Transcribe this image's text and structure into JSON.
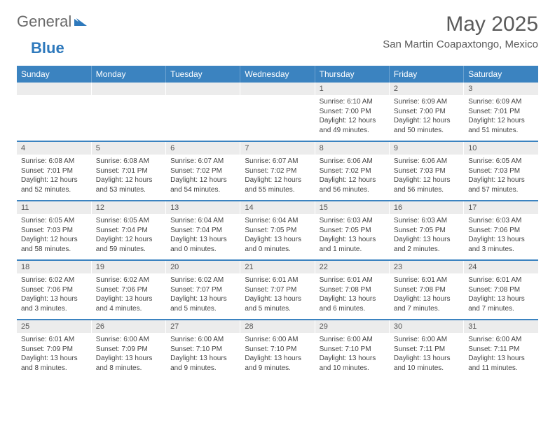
{
  "brand": {
    "word1": "General",
    "word2": "Blue",
    "accent_color": "#2e79bc",
    "text_color": "#6a6a6a"
  },
  "title": "May 2025",
  "location": "San Martin Coapaxtongo, Mexico",
  "header_bg": "#3b83c0",
  "daynum_bg": "#ececec",
  "divider_color": "#3b83c0",
  "weekdays": [
    "Sunday",
    "Monday",
    "Tuesday",
    "Wednesday",
    "Thursday",
    "Friday",
    "Saturday"
  ],
  "weeks": [
    [
      null,
      null,
      null,
      null,
      {
        "n": "1",
        "sr": "6:10 AM",
        "ss": "7:00 PM",
        "dl": "12 hours and 49 minutes."
      },
      {
        "n": "2",
        "sr": "6:09 AM",
        "ss": "7:00 PM",
        "dl": "12 hours and 50 minutes."
      },
      {
        "n": "3",
        "sr": "6:09 AM",
        "ss": "7:01 PM",
        "dl": "12 hours and 51 minutes."
      }
    ],
    [
      {
        "n": "4",
        "sr": "6:08 AM",
        "ss": "7:01 PM",
        "dl": "12 hours and 52 minutes."
      },
      {
        "n": "5",
        "sr": "6:08 AM",
        "ss": "7:01 PM",
        "dl": "12 hours and 53 minutes."
      },
      {
        "n": "6",
        "sr": "6:07 AM",
        "ss": "7:02 PM",
        "dl": "12 hours and 54 minutes."
      },
      {
        "n": "7",
        "sr": "6:07 AM",
        "ss": "7:02 PM",
        "dl": "12 hours and 55 minutes."
      },
      {
        "n": "8",
        "sr": "6:06 AM",
        "ss": "7:02 PM",
        "dl": "12 hours and 56 minutes."
      },
      {
        "n": "9",
        "sr": "6:06 AM",
        "ss": "7:03 PM",
        "dl": "12 hours and 56 minutes."
      },
      {
        "n": "10",
        "sr": "6:05 AM",
        "ss": "7:03 PM",
        "dl": "12 hours and 57 minutes."
      }
    ],
    [
      {
        "n": "11",
        "sr": "6:05 AM",
        "ss": "7:03 PM",
        "dl": "12 hours and 58 minutes."
      },
      {
        "n": "12",
        "sr": "6:05 AM",
        "ss": "7:04 PM",
        "dl": "12 hours and 59 minutes."
      },
      {
        "n": "13",
        "sr": "6:04 AM",
        "ss": "7:04 PM",
        "dl": "13 hours and 0 minutes."
      },
      {
        "n": "14",
        "sr": "6:04 AM",
        "ss": "7:05 PM",
        "dl": "13 hours and 0 minutes."
      },
      {
        "n": "15",
        "sr": "6:03 AM",
        "ss": "7:05 PM",
        "dl": "13 hours and 1 minute."
      },
      {
        "n": "16",
        "sr": "6:03 AM",
        "ss": "7:05 PM",
        "dl": "13 hours and 2 minutes."
      },
      {
        "n": "17",
        "sr": "6:03 AM",
        "ss": "7:06 PM",
        "dl": "13 hours and 3 minutes."
      }
    ],
    [
      {
        "n": "18",
        "sr": "6:02 AM",
        "ss": "7:06 PM",
        "dl": "13 hours and 3 minutes."
      },
      {
        "n": "19",
        "sr": "6:02 AM",
        "ss": "7:06 PM",
        "dl": "13 hours and 4 minutes."
      },
      {
        "n": "20",
        "sr": "6:02 AM",
        "ss": "7:07 PM",
        "dl": "13 hours and 5 minutes."
      },
      {
        "n": "21",
        "sr": "6:01 AM",
        "ss": "7:07 PM",
        "dl": "13 hours and 5 minutes."
      },
      {
        "n": "22",
        "sr": "6:01 AM",
        "ss": "7:08 PM",
        "dl": "13 hours and 6 minutes."
      },
      {
        "n": "23",
        "sr": "6:01 AM",
        "ss": "7:08 PM",
        "dl": "13 hours and 7 minutes."
      },
      {
        "n": "24",
        "sr": "6:01 AM",
        "ss": "7:08 PM",
        "dl": "13 hours and 7 minutes."
      }
    ],
    [
      {
        "n": "25",
        "sr": "6:01 AM",
        "ss": "7:09 PM",
        "dl": "13 hours and 8 minutes."
      },
      {
        "n": "26",
        "sr": "6:00 AM",
        "ss": "7:09 PM",
        "dl": "13 hours and 8 minutes."
      },
      {
        "n": "27",
        "sr": "6:00 AM",
        "ss": "7:10 PM",
        "dl": "13 hours and 9 minutes."
      },
      {
        "n": "28",
        "sr": "6:00 AM",
        "ss": "7:10 PM",
        "dl": "13 hours and 9 minutes."
      },
      {
        "n": "29",
        "sr": "6:00 AM",
        "ss": "7:10 PM",
        "dl": "13 hours and 10 minutes."
      },
      {
        "n": "30",
        "sr": "6:00 AM",
        "ss": "7:11 PM",
        "dl": "13 hours and 10 minutes."
      },
      {
        "n": "31",
        "sr": "6:00 AM",
        "ss": "7:11 PM",
        "dl": "13 hours and 11 minutes."
      }
    ]
  ],
  "labels": {
    "sunrise": "Sunrise: ",
    "sunset": "Sunset: ",
    "daylight": "Daylight: "
  }
}
